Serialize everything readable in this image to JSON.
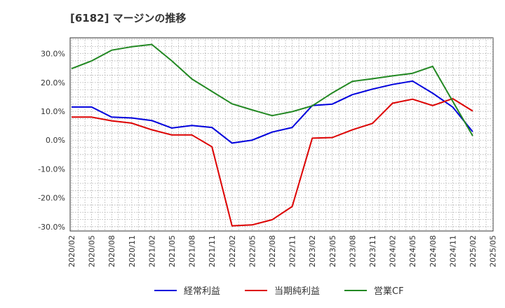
{
  "chart_data": {
    "type": "line",
    "title": "[6182]  マージンの推移",
    "xlabel": "",
    "ylabel": "",
    "x": [
      "2020/02",
      "2020/05",
      "2020/08",
      "2020/11",
      "2021/02",
      "2021/05",
      "2021/08",
      "2021/11",
      "2022/02",
      "2022/05",
      "2022/08",
      "2022/11",
      "2023/02",
      "2023/05",
      "2023/08",
      "2023/11",
      "2024/02",
      "2024/05",
      "2024/08",
      "2024/11",
      "2025/02"
    ],
    "x_ticks": [
      "2020/02",
      "2020/05",
      "2020/08",
      "2020/11",
      "2021/02",
      "2021/05",
      "2021/08",
      "2021/11",
      "2022/02",
      "2022/05",
      "2022/08",
      "2022/11",
      "2023/02",
      "2023/05",
      "2023/08",
      "2023/11",
      "2024/02",
      "2024/05",
      "2024/08",
      "2024/11",
      "2025/02",
      "2025/05"
    ],
    "ylim": [
      -31.5,
      35.5
    ],
    "y_ticks": [
      -30,
      -20,
      -10,
      0,
      10,
      20,
      30
    ],
    "y_tick_labels": [
      "-30.0%",
      "-20.0%",
      "-10.0%",
      "0.0%",
      "10.0%",
      "20.0%",
      "30.0%"
    ],
    "grid": true,
    "legend_position": "bottom",
    "series": [
      {
        "name": "経常利益",
        "color": "#0000dd",
        "values": [
          11.5,
          11.5,
          8.0,
          7.7,
          6.8,
          4.2,
          5.1,
          4.4,
          -1.0,
          0.0,
          2.8,
          4.4,
          12.0,
          12.5,
          15.8,
          17.7,
          19.3,
          20.5,
          16.3,
          11.5,
          2.9
        ]
      },
      {
        "name": "当期純利益",
        "color": "#dd0000",
        "values": [
          8.0,
          8.0,
          6.7,
          5.9,
          3.6,
          1.8,
          1.8,
          -2.3,
          -29.7,
          -29.4,
          -27.6,
          -23.0,
          0.7,
          0.9,
          3.6,
          5.8,
          12.8,
          14.2,
          12.0,
          14.4,
          10.1
        ]
      },
      {
        "name": "営業CF",
        "color": "#228822",
        "values": [
          24.8,
          27.5,
          31.2,
          32.4,
          33.2,
          27.5,
          21.2,
          16.9,
          12.6,
          10.5,
          8.5,
          9.9,
          11.9,
          16.4,
          20.4,
          21.3,
          22.3,
          23.2,
          25.6,
          13.5,
          1.5
        ]
      }
    ]
  }
}
